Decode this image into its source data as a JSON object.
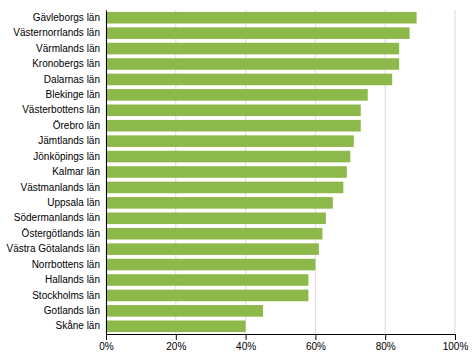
{
  "chart_data": {
    "type": "bar",
    "orientation": "horizontal",
    "categories": [
      "Skåne län",
      "Gotlands län",
      "Stockholms län",
      "Hallands län",
      "Norrbottens län",
      "Västra Götalands län",
      "Östergötlands län",
      "Södermanlands län",
      "Uppsala län",
      "Västmanlands län",
      "Kalmar län",
      "Jönköpings län",
      "Jämtlands län",
      "Örebro län",
      "Västerbottens län",
      "Blekinge län",
      "Dalarnas län",
      "Kronobergs län",
      "Värmlands län",
      "Västernorrlands län",
      "Gävleborgs län"
    ],
    "values": [
      0.4,
      0.45,
      0.58,
      0.58,
      0.6,
      0.61,
      0.62,
      0.63,
      0.65,
      0.68,
      0.69,
      0.7,
      0.71,
      0.73,
      0.73,
      0.75,
      0.82,
      0.84,
      0.84,
      0.87,
      0.89
    ],
    "color": "#8db84a",
    "xlim": [
      0,
      1.0
    ],
    "xticks": [
      {
        "value": 0,
        "label": "0%"
      },
      {
        "value": 0.2,
        "label": "20%"
      },
      {
        "value": 0.4,
        "label": "40%"
      },
      {
        "value": 0.6,
        "label": "60%"
      },
      {
        "value": 0.8,
        "label": "80%"
      },
      {
        "value": 1.0,
        "label": "100%"
      }
    ],
    "grid": true
  }
}
